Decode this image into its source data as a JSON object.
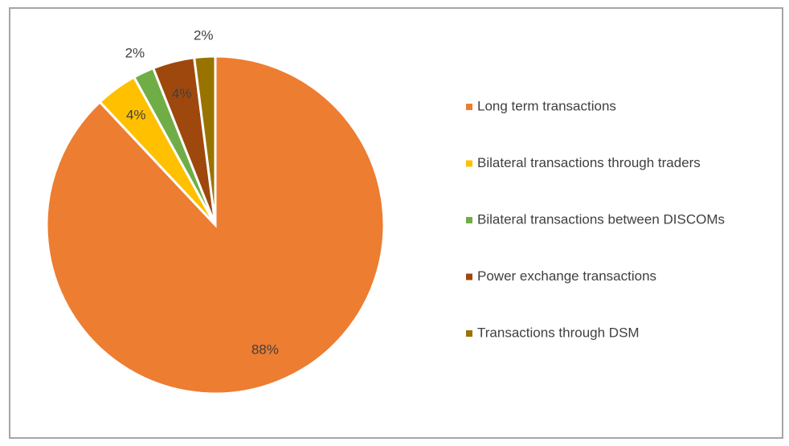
{
  "chart_data": {
    "type": "pie",
    "categories": [
      "Long term transactions",
      "Bilateral transactions through traders",
      "Bilateral transactions between DISCOMs",
      "Power exchange transactions",
      "Transactions through DSM"
    ],
    "values": [
      88,
      4,
      2,
      4,
      2
    ],
    "value_labels": [
      "88%",
      "4%",
      "2%",
      "4%",
      "2%"
    ],
    "colors": [
      "#ed7d31",
      "#ffc000",
      "#70ad47",
      "#9e480e",
      "#997300"
    ],
    "legend": "right"
  }
}
